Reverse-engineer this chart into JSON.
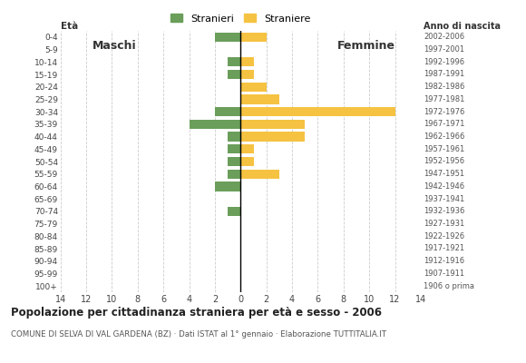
{
  "age_groups": [
    "100+",
    "95-99",
    "90-94",
    "85-89",
    "80-84",
    "75-79",
    "70-74",
    "65-69",
    "60-64",
    "55-59",
    "50-54",
    "45-49",
    "40-44",
    "35-39",
    "30-34",
    "25-29",
    "20-24",
    "15-19",
    "10-14",
    "5-9",
    "0-4"
  ],
  "birth_years": [
    "1906 o prima",
    "1907-1911",
    "1912-1916",
    "1917-1921",
    "1922-1926",
    "1927-1931",
    "1932-1936",
    "1937-1941",
    "1942-1946",
    "1947-1951",
    "1952-1956",
    "1957-1961",
    "1962-1966",
    "1967-1971",
    "1972-1976",
    "1977-1981",
    "1982-1986",
    "1987-1991",
    "1992-1996",
    "1997-2001",
    "2002-2006"
  ],
  "males": [
    0,
    0,
    0,
    0,
    0,
    0,
    1,
    0,
    2,
    1,
    1,
    1,
    1,
    4,
    2,
    0,
    0,
    1,
    1,
    0,
    2
  ],
  "females": [
    0,
    0,
    0,
    0,
    0,
    0,
    0,
    0,
    0,
    3,
    1,
    1,
    5,
    5,
    12,
    3,
    2,
    1,
    1,
    0,
    2
  ],
  "color_male": "#6a9e5a",
  "color_female": "#f5c242",
  "xlim": 14,
  "title": "Popolazione per cittadinanza straniera per età e sesso - 2006",
  "subtitle": "COMUNE DI SELVA DI VAL GARDENA (BZ) · Dati ISTAT al 1° gennaio · Elaborazione TUTTITALIA.IT",
  "legend_male": "Stranieri",
  "legend_female": "Straniere",
  "label_maschi": "Maschi",
  "label_femmine": "Femmine",
  "background_color": "#ffffff",
  "grid_color": "#cccccc"
}
